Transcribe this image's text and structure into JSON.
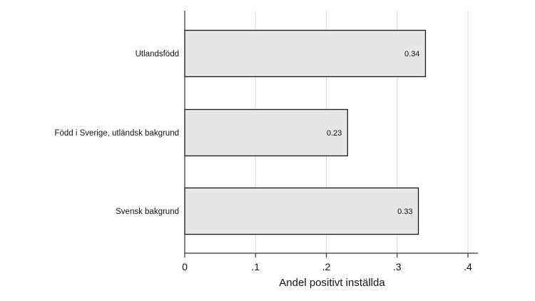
{
  "chart_data": {
    "type": "bar",
    "orientation": "horizontal",
    "categories": [
      "Utlandsfödd",
      "Född i Sverige, utländsk bakgrund",
      "Svensk bakgrund"
    ],
    "values": [
      0.34,
      0.23,
      0.33
    ],
    "value_labels": [
      "0.34",
      "0.23",
      "0.33"
    ],
    "xlabel": "Andel positivt inställda",
    "ylabel": "",
    "xlim": [
      0,
      0.4
    ],
    "xticks": [
      0,
      0.1,
      0.2,
      0.3,
      0.4
    ],
    "xtick_labels": [
      "0",
      ".1",
      ".2",
      ".3",
      ".4"
    ],
    "grid": "vertical",
    "bar_color": "#e6e6e6",
    "bar_edge_color": "#1a1a1a",
    "grid_color": "#d9d9d9",
    "axis_color": "#333333"
  }
}
